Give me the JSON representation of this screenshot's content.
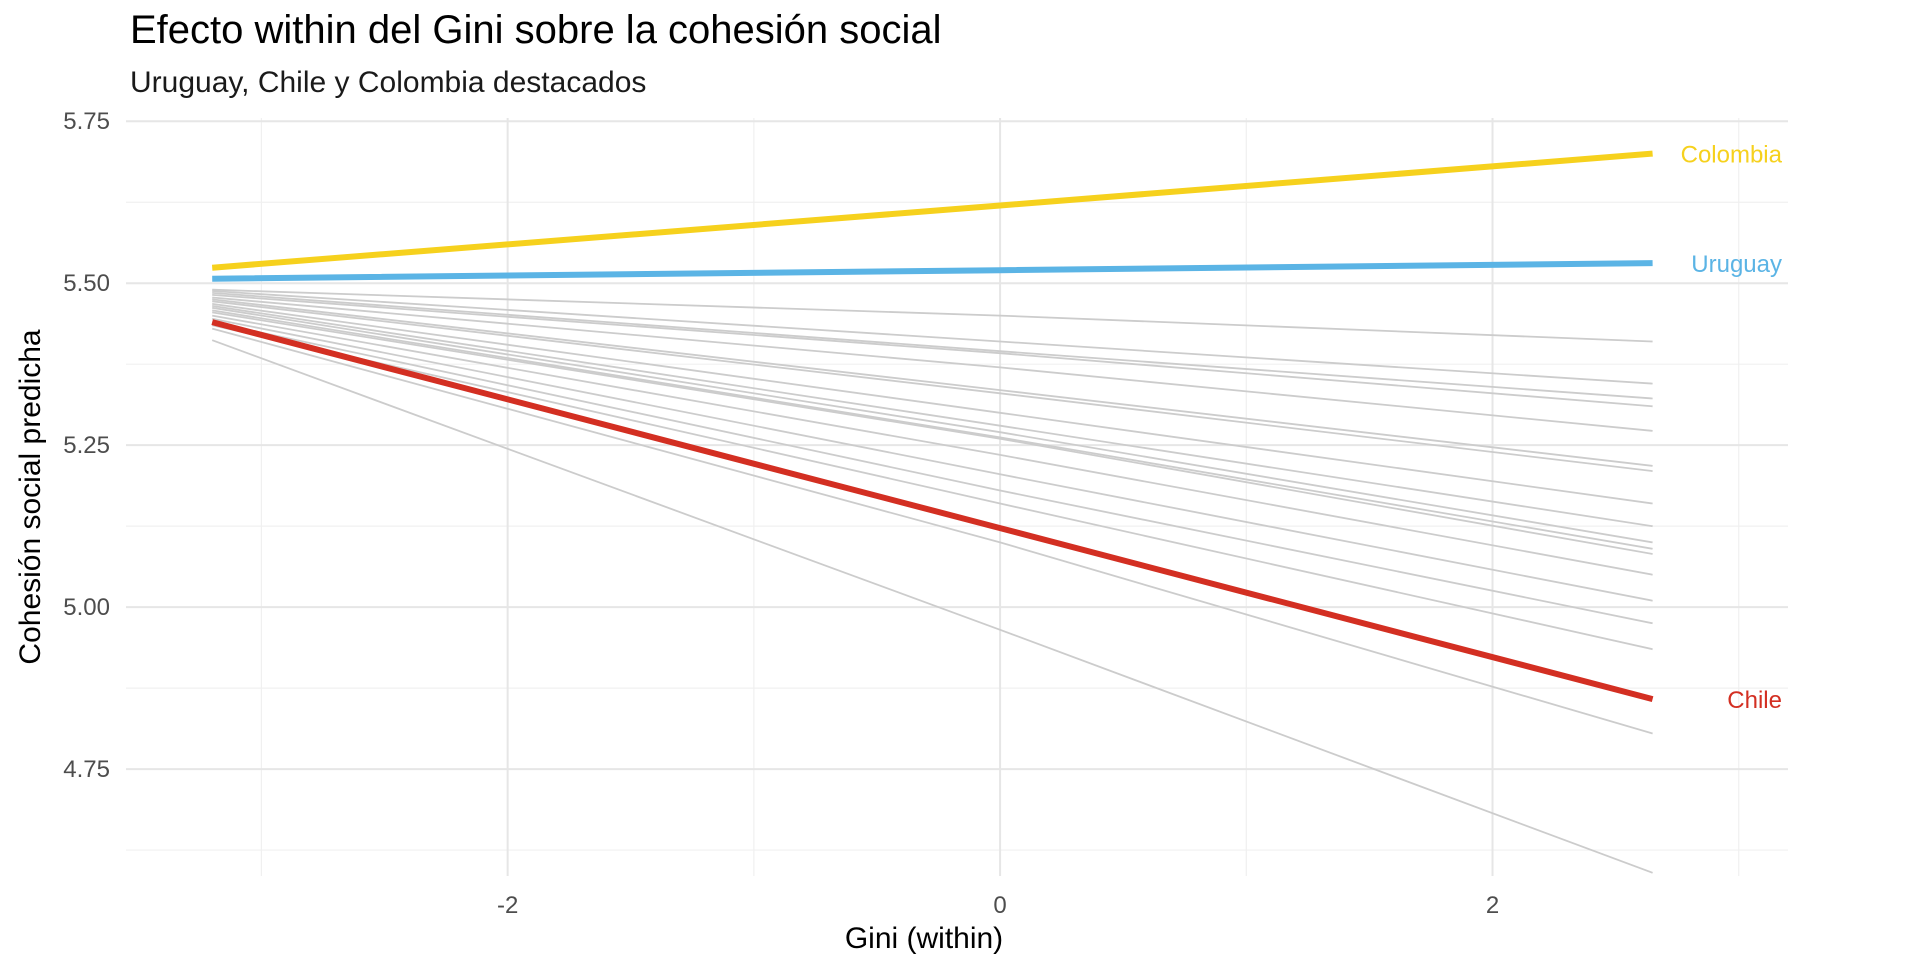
{
  "chart_data": {
    "type": "line",
    "title": "Efecto within del Gini sobre la cohesión social",
    "subtitle": "Uruguay, Chile y Colombia destacados",
    "xlabel": "Gini (within)",
    "ylabel": "Cohesión social predicha",
    "xlim": [
      -3.55,
      3.2
    ],
    "ylim": [
      4.585,
      5.755
    ],
    "x_major_ticks": [
      -2,
      0,
      2
    ],
    "x_tick_labels": [
      "-2",
      "0",
      "2"
    ],
    "y_major_ticks": [
      4.75,
      5.0,
      5.25,
      5.5,
      5.75
    ],
    "y_tick_labels": [
      "4.75",
      "5.00",
      "5.25",
      "5.50",
      "5.75"
    ],
    "grid": true,
    "legend": "direct labels at right end of lines",
    "background_series_color": "#cccccc",
    "highlighted_series": [
      {
        "name": "Colombia",
        "color": "#F6D11D",
        "x": [
          -3.2,
          0,
          2.65
        ],
        "y": [
          5.524,
          5.62,
          5.7
        ]
      },
      {
        "name": "Uruguay",
        "color": "#5BB4E5",
        "x": [
          -3.2,
          0,
          2.65
        ],
        "y": [
          5.507,
          5.52,
          5.531
        ]
      },
      {
        "name": "Chile",
        "color": "#D32F22",
        "x": [
          -3.2,
          0,
          2.65
        ],
        "y": [
          5.44,
          5.122,
          4.858
        ]
      }
    ],
    "background_series": [
      {
        "x": [
          -3.2,
          0,
          2.65
        ],
        "y": [
          5.49,
          5.45,
          5.41
        ]
      },
      {
        "x": [
          -3.2,
          0,
          2.65
        ],
        "y": [
          5.488,
          5.41,
          5.345
        ]
      },
      {
        "x": [
          -3.2,
          0,
          2.65
        ],
        "y": [
          5.485,
          5.395,
          5.322
        ]
      },
      {
        "x": [
          -3.2,
          0,
          2.65
        ],
        "y": [
          5.482,
          5.392,
          5.31
        ]
      },
      {
        "x": [
          -3.2,
          0,
          2.65
        ],
        "y": [
          5.478,
          5.37,
          5.272
        ]
      },
      {
        "x": [
          -3.2,
          0,
          2.65
        ],
        "y": [
          5.475,
          5.335,
          5.218
        ]
      },
      {
        "x": [
          -3.2,
          0,
          2.65
        ],
        "y": [
          5.472,
          5.33,
          5.21
        ]
      },
      {
        "x": [
          -3.2,
          0,
          2.65
        ],
        "y": [
          5.468,
          5.3,
          5.16
        ]
      },
      {
        "x": [
          -3.2,
          0,
          2.65
        ],
        "y": [
          5.465,
          5.28,
          5.125
        ]
      },
      {
        "x": [
          -3.2,
          0,
          2.65
        ],
        "y": [
          5.462,
          5.27,
          5.1
        ]
      },
      {
        "x": [
          -3.2,
          0,
          2.65
        ],
        "y": [
          5.458,
          5.262,
          5.09
        ]
      },
      {
        "x": [
          -3.2,
          0,
          2.65
        ],
        "y": [
          5.455,
          5.26,
          5.082
        ]
      },
      {
        "x": [
          -3.2,
          0,
          2.65
        ],
        "y": [
          5.45,
          5.235,
          5.05
        ]
      },
      {
        "x": [
          -3.2,
          0,
          2.65
        ],
        "y": [
          5.445,
          5.205,
          5.01
        ]
      },
      {
        "x": [
          -3.2,
          0,
          2.65
        ],
        "y": [
          5.44,
          5.18,
          4.975
        ]
      },
      {
        "x": [
          -3.2,
          0,
          2.65
        ],
        "y": [
          5.435,
          5.16,
          4.935
        ]
      },
      {
        "x": [
          -3.2,
          0,
          2.65
        ],
        "y": [
          5.43,
          5.1,
          4.805
        ]
      },
      {
        "x": [
          -3.2,
          0,
          2.65
        ],
        "y": [
          5.412,
          4.965,
          4.59
        ]
      }
    ]
  }
}
